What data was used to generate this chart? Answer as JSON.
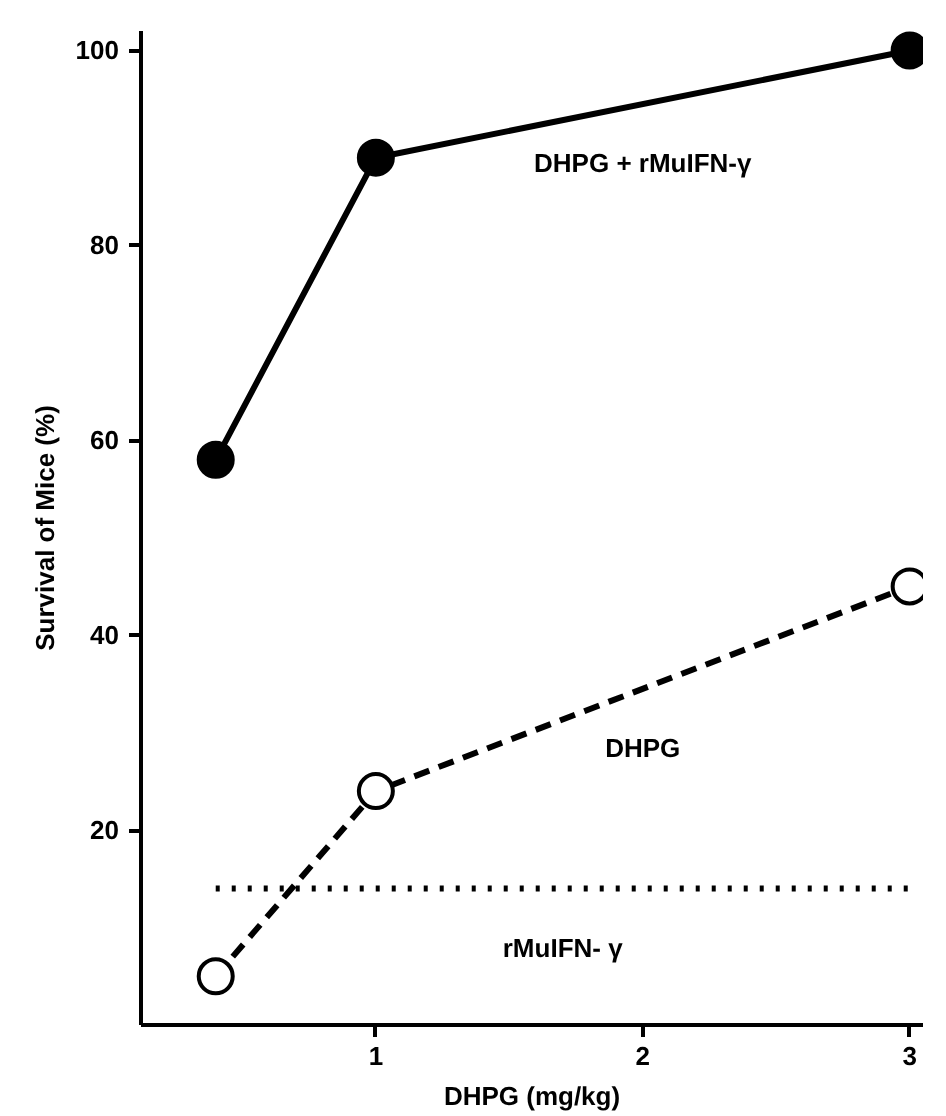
{
  "chart_data": {
    "type": "line",
    "xlabel": "DHPG (mg/kg)",
    "ylabel": "Survival of Mice (%)",
    "xlim": [
      0.12,
      3.05
    ],
    "ylim": [
      0,
      102
    ],
    "xticks": [
      1,
      2,
      3
    ],
    "yticks": [
      20,
      40,
      60,
      80,
      100
    ],
    "grid": false,
    "series": [
      {
        "name": "DHPG + rMuIFN-γ",
        "color": "#000000",
        "x": [
          0.4,
          1,
          3
        ],
        "values": [
          58,
          89,
          100
        ],
        "marker": "circle",
        "line_style": "solid"
      },
      {
        "name": "DHPG",
        "color": "#000000",
        "x": [
          0.4,
          1,
          3
        ],
        "values": [
          5,
          24,
          45
        ],
        "marker": "circle",
        "line_style": "dashed"
      },
      {
        "name": "rMuIFN- γ",
        "color": "#000000",
        "x": [
          0.4,
          3
        ],
        "values": [
          14,
          14
        ],
        "marker": "none",
        "line_style": "dotted"
      }
    ]
  }
}
